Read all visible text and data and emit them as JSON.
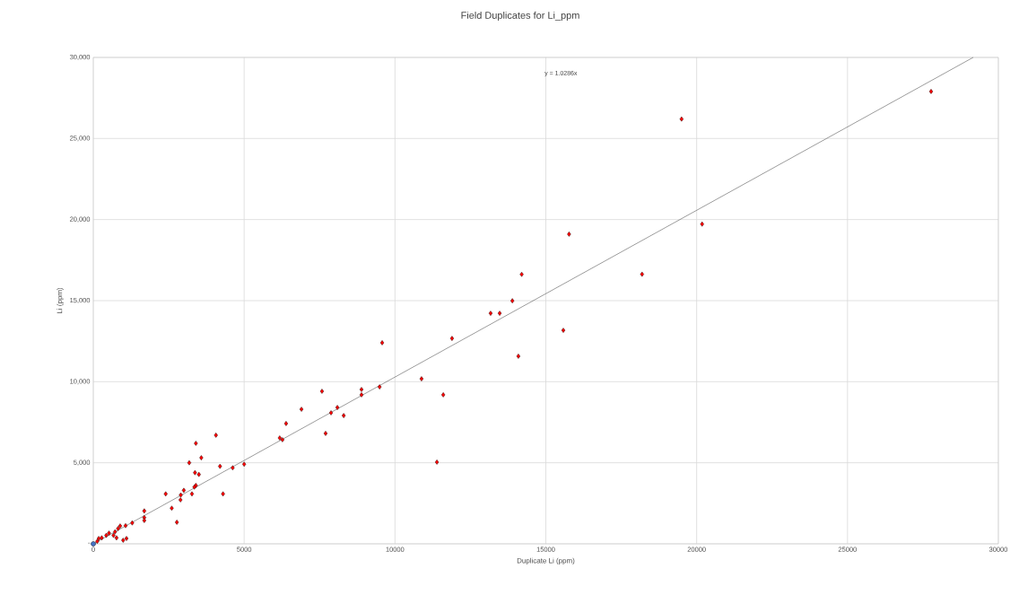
{
  "chart_data": {
    "type": "scatter",
    "title": "Field Duplicates for Li_ppm",
    "xlabel": "Duplicate Li (ppm)",
    "ylabel": "Li (ppm)",
    "annotations": [
      "y = 1.0286x"
    ],
    "xlim": [
      0,
      30000
    ],
    "ylim": [
      0,
      30000
    ],
    "xticks": [
      0,
      5000,
      10000,
      15000,
      20000,
      25000,
      30000
    ],
    "yticks": [
      {
        "value": 0,
        "label": "-"
      },
      {
        "value": 5000,
        "label": "5,000"
      },
      {
        "value": 10000,
        "label": "10,000"
      },
      {
        "value": 15000,
        "label": "15,000"
      },
      {
        "value": 20000,
        "label": "20,000"
      },
      {
        "value": 25000,
        "label": "25,000"
      },
      {
        "value": 30000,
        "label": "30,000"
      }
    ],
    "grid": true,
    "marker": "diamond",
    "series": [
      {
        "color": "#ff0000",
        "x": [
          27770,
          19500,
          20180,
          15770,
          18190,
          14200,
          13890,
          13170,
          13470,
          15580,
          11890,
          14090,
          9575,
          10880,
          11600,
          11390,
          9490,
          8890,
          8890,
          7580,
          8090,
          7880,
          8300,
          6900,
          6390,
          7700,
          6180,
          6270,
          4065,
          3400,
          3580,
          3180,
          4200,
          4620,
          5000,
          3370,
          3500,
          3400,
          3350,
          3000,
          2900,
          3270,
          2400,
          4300,
          2890,
          2600,
          2770,
          1690,
          1690,
          1690,
          1290,
          1070,
          890,
          820,
          720,
          770,
          1100,
          990,
          520,
          430,
          280,
          180,
          130,
          670
        ],
        "values": [
          27900,
          26200,
          19720,
          19100,
          16630,
          16620,
          14990,
          14220,
          14220,
          13170,
          12670,
          11570,
          12400,
          10180,
          9190,
          5040,
          9680,
          9520,
          9190,
          9410,
          8410,
          8080,
          7910,
          8300,
          7420,
          6810,
          6530,
          6420,
          6700,
          6200,
          5310,
          5000,
          4780,
          4690,
          4910,
          4390,
          4280,
          3600,
          3500,
          3300,
          3010,
          3080,
          3080,
          3080,
          2710,
          2200,
          1330,
          2030,
          1620,
          1440,
          1290,
          1120,
          1100,
          940,
          740,
          370,
          330,
          220,
          660,
          520,
          370,
          330,
          150,
          520
        ]
      },
      {
        "color": "#4472c4",
        "marker": "circle",
        "x": [
          0
        ],
        "values": [
          0
        ]
      },
      {
        "type": "line",
        "color": "#595959",
        "marker": "none",
        "x": [
          0,
          29166
        ],
        "values": [
          0,
          30000
        ]
      }
    ]
  }
}
